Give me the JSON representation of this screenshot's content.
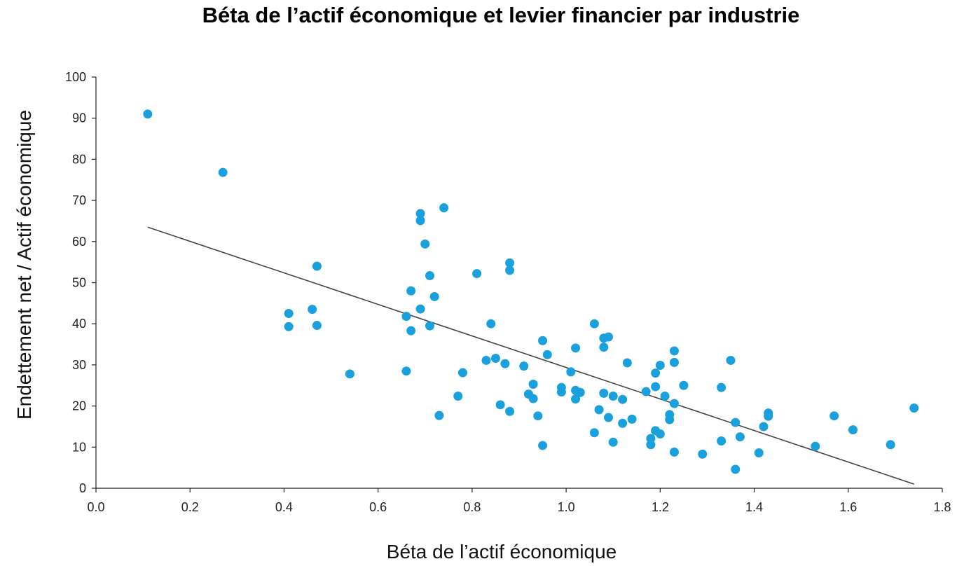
{
  "chart_data": {
    "type": "scatter",
    "title": "Béta de l’actif économique et levier financier par industrie",
    "xlabel": "Béta de l’actif économique",
    "ylabel": "Endettement net / Actif économique",
    "xlim": [
      0.0,
      1.8
    ],
    "ylim": [
      0,
      100
    ],
    "x_ticks": [
      "0.0",
      "0.2",
      "0.4",
      "0.6",
      "0.8",
      "1.0",
      "1.2",
      "1.4",
      "1.6",
      "1.8"
    ],
    "y_ticks": [
      "0",
      "10",
      "20",
      "30",
      "40",
      "50",
      "60",
      "70",
      "80",
      "90",
      "100"
    ],
    "grid": false,
    "marker_color": "#1aa0dc",
    "trendline_color": "#444444",
    "trendline": {
      "x": [
        0.11,
        1.74
      ],
      "y": [
        63.5,
        1.0
      ]
    },
    "points": [
      [
        0.11,
        91.0
      ],
      [
        0.27,
        76.8
      ],
      [
        0.41,
        42.5
      ],
      [
        0.41,
        39.3
      ],
      [
        0.46,
        43.5
      ],
      [
        0.47,
        54.0
      ],
      [
        0.47,
        39.6
      ],
      [
        0.54,
        27.8
      ],
      [
        0.66,
        41.8
      ],
      [
        0.66,
        28.5
      ],
      [
        0.67,
        48.0
      ],
      [
        0.67,
        38.3
      ],
      [
        0.69,
        66.8
      ],
      [
        0.69,
        65.1
      ],
      [
        0.69,
        43.6
      ],
      [
        0.7,
        59.4
      ],
      [
        0.71,
        51.7
      ],
      [
        0.71,
        39.5
      ],
      [
        0.72,
        46.6
      ],
      [
        0.73,
        17.7
      ],
      [
        0.74,
        68.2
      ],
      [
        0.77,
        22.4
      ],
      [
        0.78,
        28.1
      ],
      [
        0.81,
        52.2
      ],
      [
        0.83,
        31.1
      ],
      [
        0.84,
        40.0
      ],
      [
        0.85,
        31.6
      ],
      [
        0.86,
        20.3
      ],
      [
        0.87,
        30.3
      ],
      [
        0.88,
        54.8
      ],
      [
        0.88,
        53.0
      ],
      [
        0.88,
        18.7
      ],
      [
        0.91,
        29.7
      ],
      [
        0.92,
        22.9
      ],
      [
        0.93,
        25.3
      ],
      [
        0.93,
        21.8
      ],
      [
        0.94,
        17.6
      ],
      [
        0.95,
        35.9
      ],
      [
        0.95,
        10.4
      ],
      [
        0.96,
        32.5
      ],
      [
        0.99,
        24.5
      ],
      [
        0.99,
        23.4
      ],
      [
        1.01,
        28.3
      ],
      [
        1.02,
        34.1
      ],
      [
        1.02,
        23.8
      ],
      [
        1.02,
        21.7
      ],
      [
        1.03,
        23.3
      ],
      [
        1.06,
        40.0
      ],
      [
        1.06,
        13.5
      ],
      [
        1.07,
        19.1
      ],
      [
        1.08,
        36.5
      ],
      [
        1.08,
        34.3
      ],
      [
        1.08,
        23.1
      ],
      [
        1.09,
        36.8
      ],
      [
        1.09,
        17.2
      ],
      [
        1.1,
        22.4
      ],
      [
        1.1,
        11.2
      ],
      [
        1.12,
        21.6
      ],
      [
        1.12,
        15.8
      ],
      [
        1.13,
        30.5
      ],
      [
        1.14,
        16.8
      ],
      [
        1.17,
        23.5
      ],
      [
        1.18,
        12.1
      ],
      [
        1.18,
        10.6
      ],
      [
        1.19,
        28.0
      ],
      [
        1.19,
        24.7
      ],
      [
        1.19,
        14.0
      ],
      [
        1.2,
        29.9
      ],
      [
        1.2,
        13.2
      ],
      [
        1.21,
        22.4
      ],
      [
        1.22,
        17.9
      ],
      [
        1.22,
        16.7
      ],
      [
        1.23,
        33.4
      ],
      [
        1.23,
        30.6
      ],
      [
        1.23,
        20.6
      ],
      [
        1.23,
        8.8
      ],
      [
        1.25,
        25.0
      ],
      [
        1.29,
        8.3
      ],
      [
        1.33,
        24.5
      ],
      [
        1.33,
        11.5
      ],
      [
        1.35,
        31.1
      ],
      [
        1.36,
        16.0
      ],
      [
        1.36,
        4.6
      ],
      [
        1.37,
        12.5
      ],
      [
        1.41,
        8.6
      ],
      [
        1.42,
        15.0
      ],
      [
        1.43,
        18.3
      ],
      [
        1.43,
        17.5
      ],
      [
        1.53,
        10.2
      ],
      [
        1.57,
        17.6
      ],
      [
        1.61,
        14.2
      ],
      [
        1.69,
        10.6
      ],
      [
        1.74,
        19.5
      ]
    ]
  }
}
